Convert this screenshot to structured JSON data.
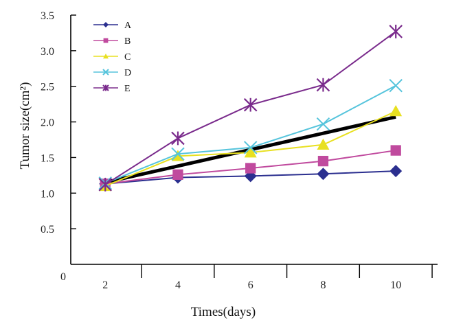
{
  "chart_data": {
    "type": "line",
    "title": "",
    "xlabel": "Times(days)",
    "ylabel": "Tumor size(cm²)",
    "ylim": [
      0,
      3.5
    ],
    "yticks": [
      "0",
      "0.5",
      "1.0",
      "1.5",
      "2.0",
      "2.5",
      "3.0",
      "3.5"
    ],
    "xticks": [
      "2",
      "4",
      "6",
      "8",
      "10"
    ],
    "x": [
      2,
      4,
      6,
      8,
      10
    ],
    "legend_position": "top-left",
    "grid": false,
    "series": [
      {
        "name": "A",
        "color": "#2b2f8f",
        "marker": "diamond",
        "values": [
          1.13,
          1.22,
          1.24,
          1.27,
          1.31
        ]
      },
      {
        "name": "B",
        "color": "#c04a9e",
        "marker": "square",
        "values": [
          1.13,
          1.26,
          1.35,
          1.45,
          1.6
        ]
      },
      {
        "name": "C",
        "color": "#e8e020",
        "marker": "triangle",
        "values": [
          1.1,
          1.52,
          1.57,
          1.68,
          2.15
        ]
      },
      {
        "name": "D",
        "color": "#55c4dc",
        "marker": "x",
        "values": [
          1.14,
          1.55,
          1.64,
          1.97,
          2.51
        ]
      },
      {
        "name": "E",
        "color": "#7a2b8c",
        "marker": "star",
        "values": [
          1.12,
          1.77,
          2.24,
          2.52,
          3.27
        ]
      }
    ],
    "trendline": {
      "color": "#000000",
      "from": [
        2,
        1.15
      ],
      "to": [
        10,
        2.07
      ]
    }
  }
}
